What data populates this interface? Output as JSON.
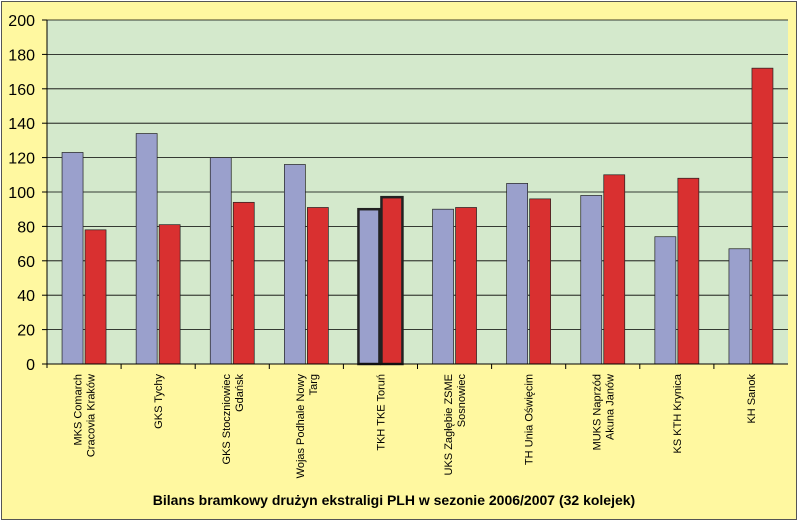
{
  "chart_data": {
    "type": "bar",
    "title": "Bilans bramkowy drużyn ekstraligi PLH w sezonie 2006/2007 (32 kolejek)",
    "xlabel": "",
    "ylabel": "",
    "ylim": [
      0,
      200
    ],
    "yticks": [
      0,
      20,
      40,
      60,
      80,
      100,
      120,
      140,
      160,
      180,
      200
    ],
    "grid": true,
    "legend": "none",
    "categories": [
      [
        "MKS Comarch",
        "Cracovia Kraków"
      ],
      [
        "GKS Tychy"
      ],
      [
        "GKS Stoczniowiec",
        "Gdańsk"
      ],
      [
        "Wojas Podhale Nowy",
        "Targ"
      ],
      [
        "TKH TKE Toruń"
      ],
      [
        "UKS Zagłębie ZSME",
        "Sosnowiec"
      ],
      [
        "TH Unia Oświęcim"
      ],
      [
        "MUKS Naprzód",
        "Akuna Janów"
      ],
      [
        "KS KTH Krynica"
      ],
      [
        "KH Sanok"
      ]
    ],
    "series": [
      {
        "values": [
          123,
          134,
          120,
          116,
          90,
          90,
          105,
          98,
          74,
          67
        ],
        "color": "#9aa0cc"
      },
      {
        "values": [
          78,
          81,
          94,
          91,
          97,
          91,
          96,
          110,
          108,
          172
        ],
        "color": "#d93030"
      }
    ],
    "highlighted_category_index": 4,
    "colors": {
      "plot_background": "#d4e9cc",
      "frame_background": "#fff8a0",
      "gridline": "#000000"
    }
  }
}
